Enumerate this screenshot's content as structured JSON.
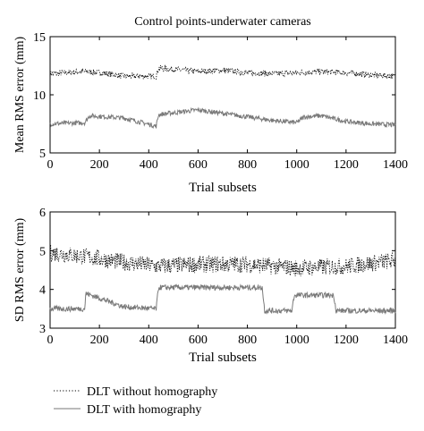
{
  "chart_data": [
    {
      "type": "line",
      "title": "Control points-underwater cameras",
      "xlabel": "Trial subsets",
      "ylabel": "Mean RMS error (mm)",
      "xlim": [
        0,
        1400
      ],
      "ylim": [
        5,
        15
      ],
      "xticks": [
        0,
        200,
        400,
        600,
        800,
        1000,
        1200,
        1400
      ],
      "yticks": [
        5,
        10,
        15
      ],
      "grid": false,
      "series": [
        {
          "name": "DLT without homography",
          "style": "dotted",
          "x": [
            0,
            140,
            200,
            300,
            430,
            440,
            600,
            700,
            800,
            900,
            1000,
            1100,
            1200,
            1300,
            1400
          ],
          "values": [
            11.8,
            12.0,
            11.9,
            11.6,
            11.6,
            12.3,
            12.0,
            12.1,
            11.9,
            11.8,
            11.9,
            12.0,
            11.9,
            11.7,
            11.6
          ]
        },
        {
          "name": "DLT with homography",
          "style": "solid",
          "x": [
            0,
            140,
            160,
            300,
            430,
            440,
            600,
            700,
            800,
            900,
            1000,
            1030,
            1100,
            1200,
            1300,
            1400
          ],
          "values": [
            7.5,
            7.6,
            8.2,
            8.0,
            7.3,
            8.3,
            8.7,
            8.4,
            8.1,
            7.8,
            7.6,
            8.1,
            8.2,
            7.7,
            7.5,
            7.4
          ]
        }
      ]
    },
    {
      "type": "line",
      "title": "",
      "xlabel": "Trial subsets",
      "ylabel": "SD RMS error (mm)",
      "xlim": [
        0,
        1400
      ],
      "ylim": [
        3,
        6
      ],
      "xticks": [
        0,
        200,
        400,
        600,
        800,
        1000,
        1200,
        1400
      ],
      "yticks": [
        3,
        4,
        5,
        6
      ],
      "grid": false,
      "series": [
        {
          "name": "DLT without homography",
          "style": "dotted",
          "x": [
            0,
            140,
            300,
            430,
            600,
            800,
            1000,
            1200,
            1400
          ],
          "values": [
            4.95,
            4.85,
            4.7,
            4.6,
            4.65,
            4.65,
            4.55,
            4.6,
            4.75
          ]
        },
        {
          "name": "DLT with homography",
          "style": "solid",
          "x": [
            0,
            140,
            145,
            300,
            430,
            440,
            860,
            870,
            980,
            990,
            1150,
            1160,
            1400
          ],
          "values": [
            3.5,
            3.5,
            3.9,
            3.55,
            3.5,
            4.05,
            4.05,
            3.45,
            3.45,
            3.85,
            3.85,
            3.45,
            3.45
          ]
        }
      ]
    }
  ],
  "legend": {
    "placement": "bottom-left",
    "entries": [
      "DLT without homography",
      "DLT with homography"
    ]
  }
}
